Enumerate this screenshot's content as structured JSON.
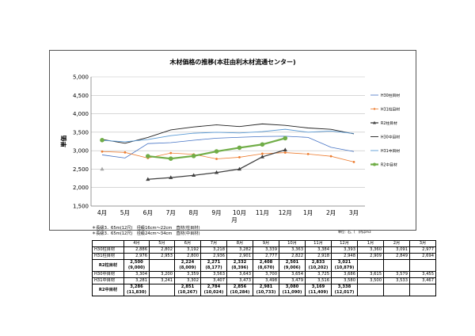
{
  "chart_data": {
    "type": "line",
    "title": "木材価格の推移(本荘由利木材流通センター)",
    "ylabel": "単価",
    "xlabel": "月",
    "ylim": [
      1500,
      5000
    ],
    "yticks": [
      "1,500",
      "2,000",
      "2,500",
      "3,000",
      "3,500",
      "4,000",
      "4,500",
      "5,000"
    ],
    "categories": [
      "4月",
      "5月",
      "6月",
      "7月",
      "8月",
      "9月",
      "10月",
      "11月",
      "12月",
      "1月",
      "2月",
      "3月"
    ],
    "grid": true,
    "legend_position": "right",
    "series": [
      {
        "name": "H30柱目材",
        "color": "#4472c4",
        "marker": "none",
        "values": [
          2886,
          2802,
          3192,
          3218,
          3282,
          3339,
          3363,
          3384,
          3393,
          3360,
          3091,
          2977
        ]
      },
      {
        "name": "H31柱目材",
        "color": "#ed7d31",
        "marker": "dot",
        "values": [
          2976,
          2953,
          2800,
          2936,
          2901,
          2777,
          2822,
          2918,
          2948,
          2909,
          2849,
          2694
        ]
      },
      {
        "name": "R2柱目材",
        "color": "#404040",
        "marker": "triangle",
        "values": [
          2500,
          null,
          2224,
          2271,
          2332,
          2408,
          2501,
          2833,
          3021,
          null,
          null,
          null
        ]
      },
      {
        "name": "H30中目材",
        "color": "#1f1f1f",
        "marker": "none",
        "values": [
          3304,
          3200,
          3359,
          3563,
          3643,
          3700,
          3654,
          3725,
          3686,
          3615,
          3579,
          3455
        ]
      },
      {
        "name": "H31中目材",
        "color": "#5b9bd5",
        "marker": "none",
        "values": [
          3281,
          3241,
          3302,
          3407,
          3473,
          3498,
          3479,
          3516,
          3580,
          3500,
          3533,
          3467
        ]
      },
      {
        "name": "R2中目材",
        "color": "#70ad47",
        "marker": "dot",
        "values": [
          3286,
          null,
          2851,
          2784,
          2856,
          2981,
          3080,
          3169,
          3338,
          null,
          null,
          null
        ]
      }
    ]
  },
  "notes": {
    "line1": "＊長級3．65m(12尺)　径級16cm～22cm　直材(柱目材)",
    "line2": "＊長級3．65m(12尺)　径級24cm～34cm　直材(中目材)",
    "unit": "単位：石、(　)内はm3"
  },
  "table": {
    "headers": [
      "",
      "4月",
      "5月",
      "6月",
      "7月",
      "8月",
      "9月",
      "10月",
      "11月",
      "12月",
      "1月",
      "2月",
      "3月"
    ],
    "rows_a": [
      {
        "label": "H30柱目材",
        "cells": [
          "2,886",
          "2,802",
          "3,192",
          "3,218",
          "3,282",
          "3,339",
          "3,363",
          "3,384",
          "3,393",
          "3,360",
          "3,091",
          "2,977"
        ]
      },
      {
        "label": "H31柱目材",
        "cells": [
          "2,976",
          "2,953",
          "2,800",
          "2,936",
          "2,901",
          "2,777",
          "2,822",
          "2,918",
          "2,948",
          "2,909",
          "2,849",
          "2,694"
        ]
      }
    ],
    "r2_pillar": {
      "label": "R2柱目材",
      "top": [
        "2,500",
        "",
        "2,224",
        "2,271",
        "2,332",
        "2,408",
        "2,501",
        "2,833",
        "3,021",
        "",
        "",
        ""
      ],
      "bottom": [
        "(9,000)",
        "",
        "(8,009)",
        "(8,177)",
        "(8,396)",
        "(8,670)",
        "(9,006)",
        "(10,202)",
        "(10,879)",
        "",
        "",
        ""
      ]
    },
    "rows_b": [
      {
        "label": "H30中目材",
        "cells": [
          "3,304",
          "3,200",
          "3,359",
          "3,563",
          "3,643",
          "3,700",
          "3,654",
          "3,725",
          "3,686",
          "3,615",
          "3,579",
          "3,455"
        ]
      },
      {
        "label": "H31中目材",
        "cells": [
          "3,281",
          "3,241",
          "3,302",
          "3,407",
          "3,473",
          "3,498",
          "3,479",
          "3,516",
          "3,580",
          "3,500",
          "3,533",
          "3,467"
        ]
      }
    ],
    "r2_medium": {
      "label": "R2中目材",
      "top": [
        "3,286",
        "",
        "2,851",
        "2,784",
        "2,856",
        "2,981",
        "3,080",
        "3,169",
        "3,338",
        "",
        "",
        ""
      ],
      "bottom": [
        "(11,830)",
        "",
        "(10,267)",
        "(10,024)",
        "(10,284)",
        "(10,733)",
        "(11,090)",
        "(11,409)",
        "(12,017)",
        "",
        "",
        ""
      ]
    }
  }
}
